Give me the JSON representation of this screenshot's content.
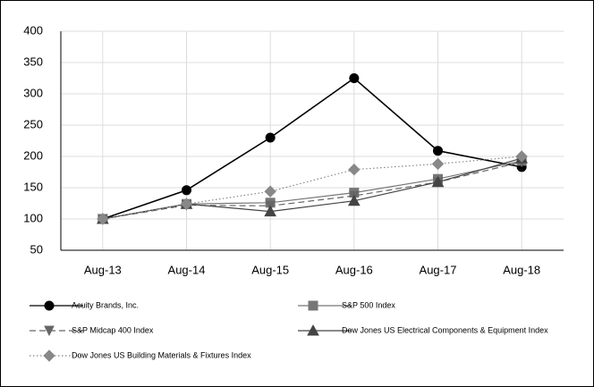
{
  "chart_data": {
    "type": "line",
    "categories": [
      "Aug-13",
      "Aug-14",
      "Aug-15",
      "Aug-16",
      "Aug-17",
      "Aug-18"
    ],
    "series": [
      {
        "name": "Acuity Brands, Inc.",
        "color": "#000000",
        "marker": "circle",
        "dash": "solid",
        "values": [
          100,
          146,
          230,
          325,
          209,
          183
        ]
      },
      {
        "name": "S&P 500 Index",
        "color": "#777777",
        "marker": "square",
        "dash": "solid",
        "values": [
          100,
          124,
          126,
          142,
          164,
          193
        ]
      },
      {
        "name": "S&P Midcap 400 Index",
        "color": "#666666",
        "marker": "triangle-down",
        "dash": "dashed",
        "values": [
          100,
          122,
          121,
          137,
          159,
          191
        ]
      },
      {
        "name": "Dow Jones US Electrical Components & Equipment Index",
        "color": "#444444",
        "marker": "triangle",
        "dash": "solid",
        "values": [
          100,
          124,
          112,
          129,
          159,
          197
        ]
      },
      {
        "name": "Dow Jones US Building Materials & Fixtures Index",
        "color": "#888888",
        "marker": "diamond",
        "dash": "dotted",
        "values": [
          100,
          124,
          144,
          179,
          188,
          200
        ]
      }
    ],
    "ylim": [
      50,
      400
    ],
    "yticks": [
      50,
      100,
      150,
      200,
      250,
      300,
      350,
      400
    ],
    "grid": true
  }
}
